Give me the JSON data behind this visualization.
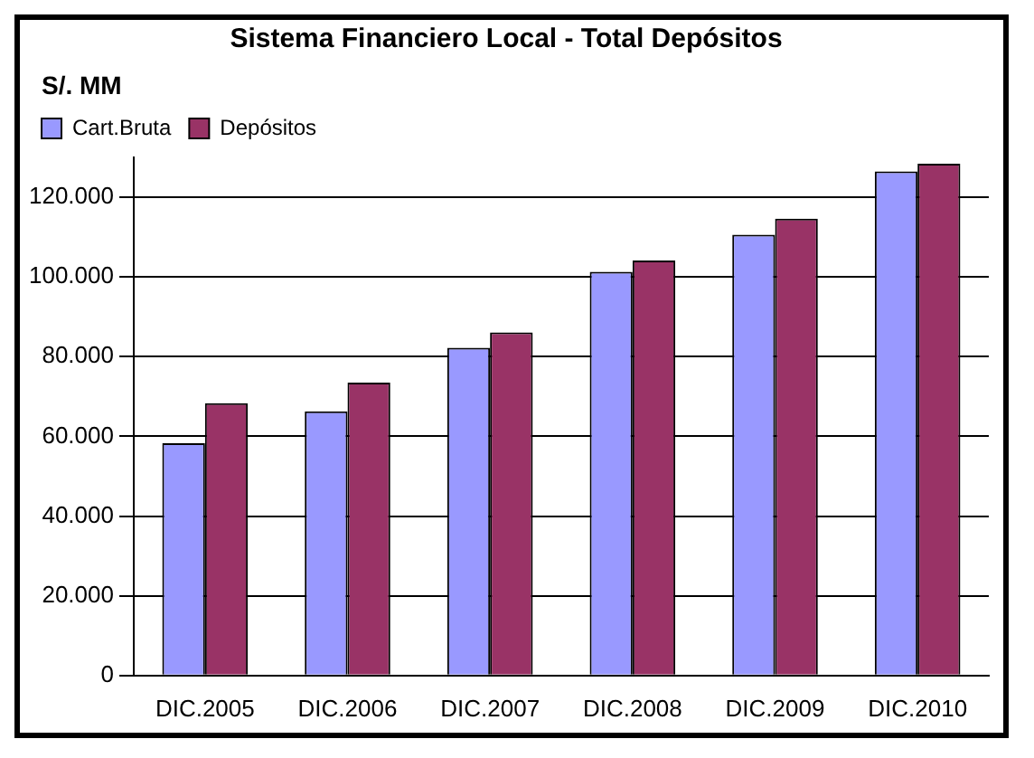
{
  "chart_data": {
    "type": "bar",
    "title": "Sistema Financiero Local - Total Depósitos",
    "ylabel": "S/. MM",
    "categories": [
      "DIC.2005",
      "DIC.2006",
      "DIC.2007",
      "DIC.2008",
      "DIC.2009",
      "DIC.2010"
    ],
    "series": [
      {
        "name": "Cart.Bruta",
        "color": "#9999ff",
        "values": [
          58300,
          66300,
          82200,
          101300,
          110600,
          126500
        ]
      },
      {
        "name": "Depósitos",
        "color": "#993366",
        "values": [
          68300,
          73500,
          86100,
          104100,
          114600,
          128400
        ]
      }
    ],
    "ylim": [
      0,
      130000
    ],
    "yticks": [
      {
        "value": 0,
        "label": "0"
      },
      {
        "value": 20000,
        "label": "20.000"
      },
      {
        "value": 40000,
        "label": "40.000"
      },
      {
        "value": 60000,
        "label": "60.000"
      },
      {
        "value": 80000,
        "label": "80.000"
      },
      {
        "value": 100000,
        "label": "100.000"
      },
      {
        "value": 120000,
        "label": "120.000"
      }
    ],
    "grid": "y",
    "legend": "top left"
  }
}
